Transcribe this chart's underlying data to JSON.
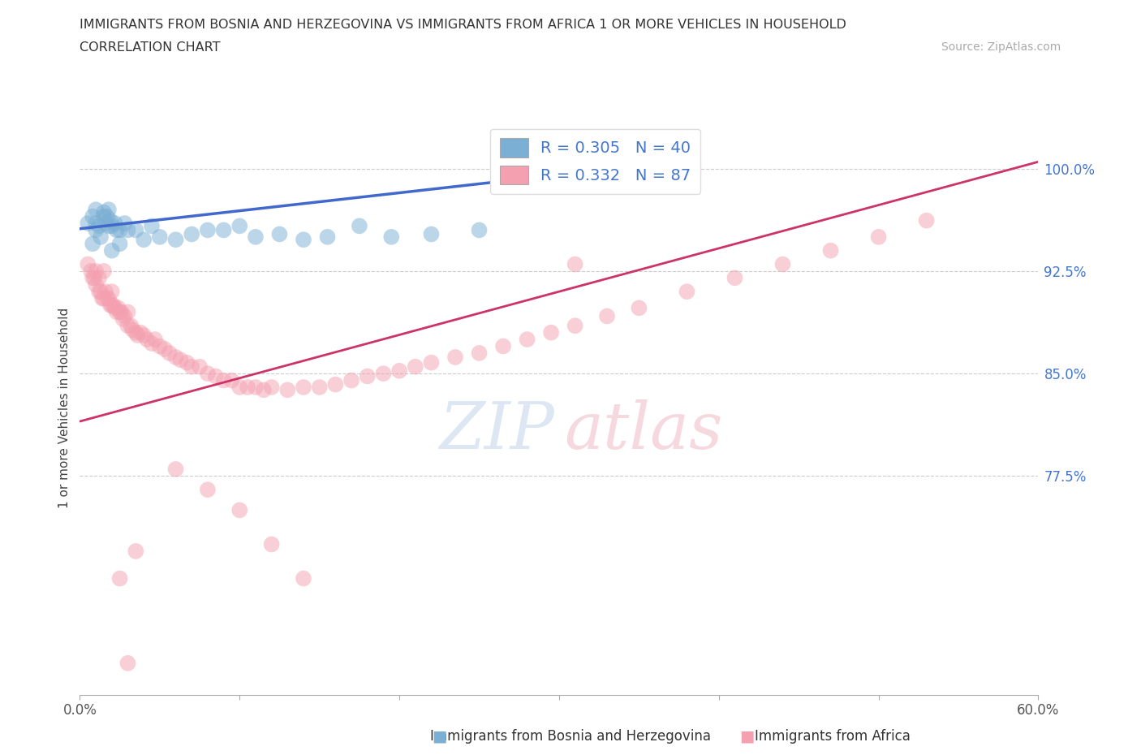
{
  "title": "IMMIGRANTS FROM BOSNIA AND HERZEGOVINA VS IMMIGRANTS FROM AFRICA 1 OR MORE VEHICLES IN HOUSEHOLD",
  "subtitle": "CORRELATION CHART",
  "source": "Source: ZipAtlas.com",
  "ylabel": "1 or more Vehicles in Household",
  "legend_label1": "Immigrants from Bosnia and Herzegovina",
  "legend_label2": "Immigrants from Africa",
  "r1": 0.305,
  "n1": 40,
  "r2": 0.332,
  "n2": 87,
  "xlim": [
    0.0,
    0.6
  ],
  "ylim": [
    0.615,
    1.035
  ],
  "xticks": [
    0.0,
    0.1,
    0.2,
    0.3,
    0.4,
    0.5,
    0.6
  ],
  "xticklabels": [
    "0.0%",
    "",
    "",
    "",
    "",
    "",
    "60.0%"
  ],
  "yticks": [
    0.775,
    0.85,
    0.925,
    1.0
  ],
  "yticklabels": [
    "77.5%",
    "85.0%",
    "92.5%",
    "100.0%"
  ],
  "color1": "#7BAFD4",
  "color2": "#F4A0B0",
  "line_color1": "#4169CC",
  "line_color2": "#CC3366",
  "watermark_zip_color": "#C5D8EC",
  "watermark_atlas_color": "#F0C0C8",
  "background_color": "#ffffff",
  "blue_line_x": [
    0.0,
    0.35
  ],
  "blue_line_y": [
    0.956,
    1.002
  ],
  "pink_line_x": [
    0.0,
    0.6
  ],
  "pink_line_y": [
    0.815,
    1.005
  ],
  "scatter1_x": [
    0.005,
    0.008,
    0.008,
    0.01,
    0.01,
    0.01,
    0.012,
    0.013,
    0.015,
    0.015,
    0.016,
    0.017,
    0.018,
    0.018,
    0.019,
    0.02,
    0.02,
    0.022,
    0.023,
    0.025,
    0.025,
    0.028,
    0.03,
    0.035,
    0.04,
    0.045,
    0.05,
    0.06,
    0.07,
    0.08,
    0.09,
    0.1,
    0.11,
    0.125,
    0.14,
    0.155,
    0.175,
    0.195,
    0.22,
    0.25
  ],
  "scatter1_y": [
    0.96,
    0.945,
    0.965,
    0.955,
    0.96,
    0.97,
    0.958,
    0.95,
    0.965,
    0.968,
    0.96,
    0.965,
    0.958,
    0.97,
    0.962,
    0.94,
    0.958,
    0.96,
    0.955,
    0.945,
    0.955,
    0.96,
    0.955,
    0.955,
    0.948,
    0.958,
    0.95,
    0.948,
    0.952,
    0.955,
    0.955,
    0.958,
    0.95,
    0.952,
    0.948,
    0.95,
    0.958,
    0.95,
    0.952,
    0.955
  ],
  "scatter2_x": [
    0.005,
    0.007,
    0.008,
    0.009,
    0.01,
    0.01,
    0.012,
    0.012,
    0.013,
    0.014,
    0.015,
    0.015,
    0.016,
    0.017,
    0.018,
    0.019,
    0.02,
    0.02,
    0.021,
    0.022,
    0.023,
    0.024,
    0.025,
    0.026,
    0.027,
    0.028,
    0.03,
    0.03,
    0.032,
    0.033,
    0.035,
    0.036,
    0.038,
    0.04,
    0.042,
    0.045,
    0.047,
    0.05,
    0.053,
    0.056,
    0.06,
    0.063,
    0.067,
    0.07,
    0.075,
    0.08,
    0.085,
    0.09,
    0.095,
    0.1,
    0.105,
    0.11,
    0.115,
    0.12,
    0.13,
    0.14,
    0.15,
    0.16,
    0.17,
    0.18,
    0.19,
    0.2,
    0.21,
    0.22,
    0.235,
    0.25,
    0.265,
    0.28,
    0.295,
    0.31,
    0.33,
    0.35,
    0.38,
    0.41,
    0.44,
    0.47,
    0.5,
    0.53,
    0.06,
    0.08,
    0.1,
    0.12,
    0.14,
    0.03,
    0.025,
    0.035,
    0.31
  ],
  "scatter2_y": [
    0.93,
    0.925,
    0.92,
    0.92,
    0.925,
    0.915,
    0.91,
    0.92,
    0.91,
    0.905,
    0.905,
    0.925,
    0.91,
    0.905,
    0.905,
    0.9,
    0.9,
    0.91,
    0.9,
    0.898,
    0.895,
    0.898,
    0.895,
    0.895,
    0.89,
    0.892,
    0.885,
    0.895,
    0.885,
    0.882,
    0.88,
    0.878,
    0.88,
    0.878,
    0.875,
    0.872,
    0.875,
    0.87,
    0.868,
    0.865,
    0.862,
    0.86,
    0.858,
    0.855,
    0.855,
    0.85,
    0.848,
    0.845,
    0.845,
    0.84,
    0.84,
    0.84,
    0.838,
    0.84,
    0.838,
    0.84,
    0.84,
    0.842,
    0.845,
    0.848,
    0.85,
    0.852,
    0.855,
    0.858,
    0.862,
    0.865,
    0.87,
    0.875,
    0.88,
    0.885,
    0.892,
    0.898,
    0.91,
    0.92,
    0.93,
    0.94,
    0.95,
    0.962,
    0.78,
    0.765,
    0.75,
    0.725,
    0.7,
    0.638,
    0.7,
    0.72,
    0.93
  ]
}
